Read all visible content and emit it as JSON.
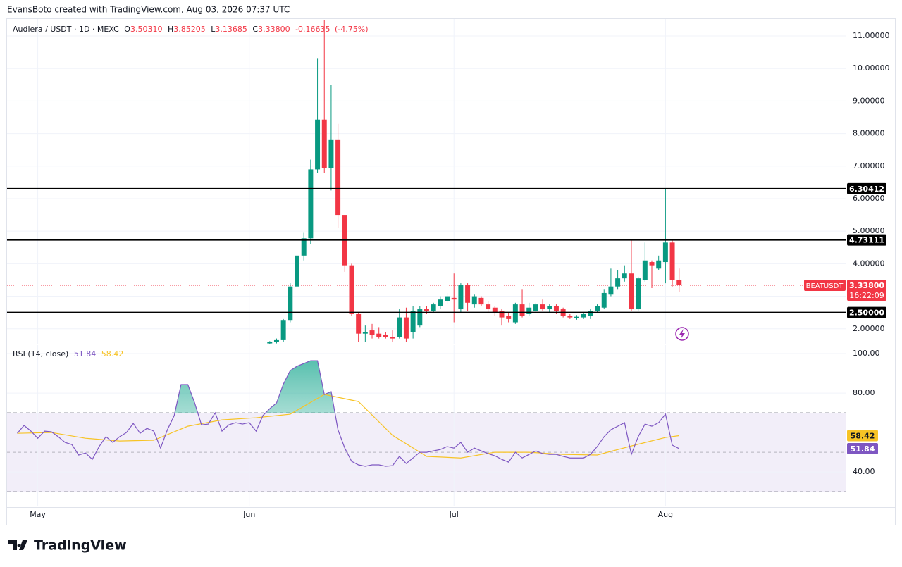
{
  "header": "EvansBoto created with TradingView.com, Aug 03, 2026 07:37 UTC",
  "footer": "TradingView",
  "chart_data": [
    {
      "type": "candlestick",
      "title": "Audiera / USDT · 1D · MEXC",
      "ohlc_legend": {
        "o": "O",
        "open": "3.50310",
        "h": "H",
        "high": "3.85205",
        "l": "L",
        "low": "3.13685",
        "c": "C",
        "close": "3.33800",
        "change": "-0.16635",
        "change_pct": "(-4.75%)"
      },
      "x": [
        34,
        35,
        36,
        37,
        38,
        39,
        40,
        41,
        42,
        43,
        44,
        45,
        46,
        47,
        48,
        49,
        50,
        51,
        52,
        53,
        54,
        55,
        56,
        57,
        58,
        59,
        60,
        61,
        62,
        63,
        64,
        65,
        66,
        67,
        68,
        69,
        70,
        71,
        72,
        73,
        74,
        75,
        76,
        77,
        78,
        79,
        80,
        81,
        82,
        83,
        84,
        85,
        86,
        87,
        88,
        89,
        90,
        91,
        92,
        93,
        94
      ],
      "open": [
        1.55,
        1.6,
        1.65,
        2.25,
        3.3,
        4.25,
        4.78,
        6.9,
        8.43,
        6.95,
        7.8,
        5.5,
        3.95,
        2.45,
        1.85,
        1.95,
        1.85,
        1.8,
        1.75,
        1.75,
        2.35,
        1.9,
        2.1,
        2.6,
        2.55,
        2.7,
        2.85,
        2.95,
        2.6,
        3.35,
        2.75,
        2.95,
        2.75,
        2.65,
        2.55,
        2.4,
        2.2,
        2.75,
        2.45,
        2.55,
        2.75,
        2.6,
        2.7,
        2.6,
        2.4,
        2.33,
        2.35,
        2.4,
        2.55,
        2.65,
        3.05,
        3.3,
        3.55,
        3.7,
        2.6,
        3.5,
        4.05,
        3.85,
        4.05,
        4.65,
        3.5031
      ],
      "high": [
        1.62,
        1.7,
        2.3,
        3.4,
        4.3,
        4.95,
        7.2,
        10.3,
        11.48,
        9.5,
        8.3,
        5.5,
        4.0,
        2.5,
        2.1,
        2.15,
        2.05,
        1.9,
        1.95,
        2.6,
        2.65,
        2.7,
        2.7,
        2.7,
        2.8,
        3.0,
        3.1,
        3.7,
        3.4,
        3.4,
        3.05,
        3.0,
        2.85,
        2.7,
        2.6,
        2.5,
        2.8,
        3.2,
        2.8,
        2.8,
        2.9,
        2.75,
        2.75,
        2.65,
        2.45,
        2.42,
        2.5,
        2.6,
        2.75,
        3.2,
        3.85,
        3.8,
        3.95,
        4.75,
        3.6,
        4.65,
        4.1,
        4.25,
        6.30412,
        4.73111,
        3.85205
      ],
      "low": [
        1.5,
        1.55,
        1.6,
        2.2,
        3.2,
        4.1,
        4.6,
        6.8,
        6.8,
        6.25,
        5.1,
        3.75,
        2.4,
        1.6,
        1.6,
        1.7,
        1.7,
        1.7,
        1.6,
        1.7,
        1.6,
        1.7,
        2.05,
        2.45,
        2.5,
        2.6,
        2.75,
        2.2,
        2.5,
        2.55,
        2.65,
        2.7,
        2.5,
        2.4,
        2.1,
        2.2,
        2.15,
        2.35,
        2.4,
        2.5,
        2.55,
        2.5,
        2.45,
        2.35,
        2.3,
        2.28,
        2.3,
        2.3,
        2.5,
        2.6,
        3.0,
        3.2,
        3.45,
        2.55,
        2.55,
        3.45,
        3.25,
        3.8,
        3.4,
        3.3,
        3.13685
      ],
      "close": [
        1.6,
        1.65,
        2.25,
        3.3,
        4.25,
        4.78,
        6.9,
        8.43,
        6.95,
        7.8,
        5.5,
        3.95,
        2.45,
        1.85,
        1.9,
        1.8,
        1.75,
        1.75,
        1.7,
        2.35,
        1.7,
        2.55,
        2.6,
        2.55,
        2.75,
        2.9,
        3.0,
        2.9,
        3.35,
        2.8,
        3.0,
        2.75,
        2.6,
        2.5,
        2.35,
        2.3,
        2.75,
        2.4,
        2.65,
        2.75,
        2.6,
        2.7,
        2.55,
        2.4,
        2.35,
        2.37,
        2.45,
        2.55,
        2.7,
        3.1,
        3.3,
        3.55,
        3.7,
        2.6,
        3.55,
        4.1,
        3.95,
        4.1,
        4.65,
        3.5,
        3.338
      ],
      "up_color": "#089981",
      "down_color": "#f23645",
      "xlim": [
        -4.5,
        118.4
      ],
      "xticks": [
        0,
        31,
        61,
        92
      ],
      "ylim": [
        1.54,
        11.52
      ],
      "yticks": [
        {
          "value": 2,
          "label": "2.00000"
        },
        {
          "value": 3,
          "label": "3.00000"
        },
        {
          "value": 4,
          "label": "4.00000"
        },
        {
          "value": 5,
          "label": "5.00000"
        },
        {
          "value": 6,
          "label": "6.00000"
        },
        {
          "value": 7,
          "label": "7.00000"
        },
        {
          "value": 8,
          "label": "8.00000"
        },
        {
          "value": 9,
          "label": "9.00000"
        },
        {
          "value": 10,
          "label": "10.00000"
        },
        {
          "value": 11,
          "label": "11.00000"
        }
      ],
      "levels": [
        {
          "value": 6.30412,
          "label": "6.30412"
        },
        {
          "value": 4.73111,
          "label": "4.73111"
        },
        {
          "value": 2.5,
          "label": "2.50000"
        }
      ],
      "last_price": {
        "symbol": "BEATUSDT",
        "value": 3.338,
        "label": "3.33800",
        "countdown": "16:22:09",
        "color": "#f23645"
      },
      "grid": true
    },
    {
      "type": "line",
      "title": "RSI (14, close)",
      "series": [
        {
          "name": "RSI",
          "color": "#7e57c2",
          "x": [
            -3,
            -2,
            -1,
            0,
            1,
            2,
            3,
            4,
            5,
            6,
            7,
            8,
            9,
            10,
            11,
            12,
            13,
            14,
            15,
            16,
            17,
            18,
            19,
            20,
            21,
            22,
            23,
            24,
            25,
            26,
            27,
            28,
            29,
            30,
            31,
            32,
            33,
            34,
            35,
            36,
            37,
            38,
            39,
            40,
            41,
            42,
            43,
            44,
            45,
            46,
            47,
            48,
            49,
            50,
            51,
            52,
            53,
            54,
            55,
            56,
            57,
            58,
            59,
            60,
            61,
            62,
            63,
            64,
            65,
            66,
            67,
            68,
            69,
            70,
            71,
            72,
            73,
            74,
            75,
            76,
            77,
            78,
            79,
            80,
            81,
            82,
            83,
            84,
            85,
            86,
            87,
            88,
            89,
            90,
            91,
            92,
            93,
            94
          ],
          "values": [
            59.6,
            63.6,
            60.7,
            57.1,
            60.7,
            60.4,
            57.9,
            55.0,
            53.9,
            48.6,
            49.6,
            46.4,
            52.9,
            57.9,
            55.0,
            57.9,
            60.0,
            64.6,
            59.6,
            62.1,
            60.7,
            52.1,
            61.4,
            68.6,
            84.3,
            84.3,
            75.0,
            63.9,
            64.3,
            70.0,
            60.7,
            63.9,
            65.0,
            64.3,
            65.0,
            60.7,
            68.6,
            72.1,
            75.0,
            84.6,
            91.4,
            93.6,
            95.0,
            96.4,
            96.4,
            79.3,
            80.7,
            61.4,
            52.1,
            45.4,
            43.6,
            42.9,
            43.6,
            43.6,
            42.9,
            43.2,
            47.9,
            44.3,
            47.1,
            50.0,
            50.0,
            50.7,
            51.4,
            52.9,
            52.1,
            55.0,
            50.0,
            52.1,
            50.7,
            49.3,
            48.2,
            46.4,
            45.0,
            50.0,
            47.1,
            48.9,
            50.7,
            49.3,
            48.9,
            48.9,
            47.9,
            47.1,
            47.1,
            47.1,
            48.9,
            52.9,
            57.9,
            61.4,
            63.2,
            65.0,
            48.9,
            57.9,
            64.3,
            63.2,
            65.0,
            69.3,
            53.6,
            51.84
          ]
        },
        {
          "name": "RSI-based MA",
          "color": "#f7c325",
          "x": [
            -3,
            2,
            7,
            12,
            17,
            22,
            27,
            32,
            37,
            42,
            47,
            52,
            57,
            62,
            67,
            72,
            77,
            82,
            87,
            92,
            94
          ],
          "values": [
            59.6,
            60.0,
            57.1,
            55.7,
            56.1,
            63.2,
            66.4,
            67.5,
            69.3,
            79.3,
            75.7,
            58.6,
            47.9,
            47.1,
            50.0,
            50.0,
            48.9,
            48.6,
            53.2,
            57.5,
            58.42
          ]
        }
      ],
      "xlim": [
        -4.5,
        118.4
      ],
      "xticks": [
        {
          "value": 0,
          "label": "May"
        },
        {
          "value": 31,
          "label": "Jun"
        },
        {
          "value": 61,
          "label": "Jul"
        },
        {
          "value": 92,
          "label": "Aug"
        }
      ],
      "ylim": [
        22.9,
        104.3
      ],
      "yticks": [
        {
          "value": 40,
          "label": "40.00"
        },
        {
          "value": 80,
          "label": "80.00"
        },
        {
          "value": 100,
          "label": "100.00"
        }
      ],
      "bands": [
        30,
        70
      ],
      "midline": 50,
      "overbought_fill": "#22ab94",
      "grid": true
    }
  ]
}
